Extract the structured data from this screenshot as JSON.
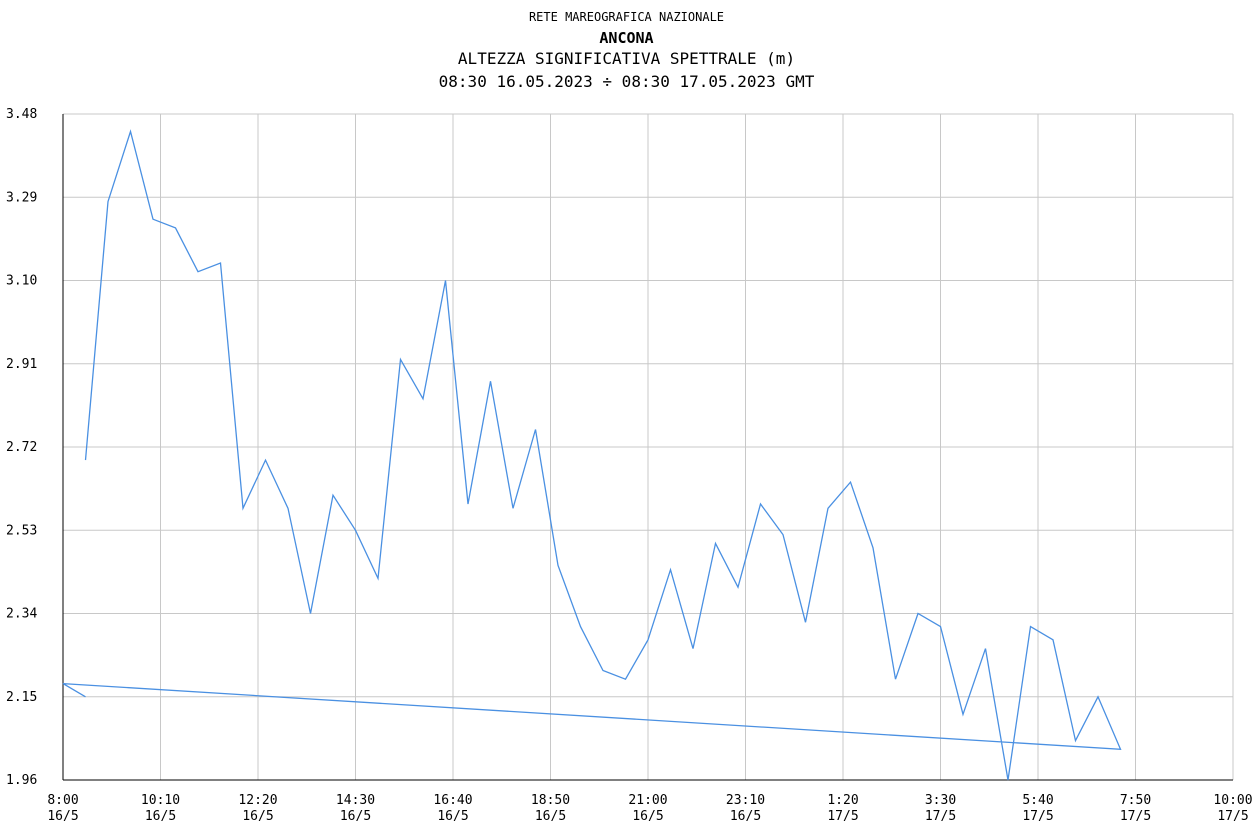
{
  "chart_data": {
    "type": "line",
    "network": "RETE MAREOGRAFICA NAZIONALE",
    "station": "ANCONA",
    "title": "ALTEZZA SIGNIFICATIVA SPETTRALE (m)",
    "subtitle": "08:30 16.05.2023 ÷ 08:30 17.05.2023 GMT",
    "xlabel": "",
    "ylabel": "",
    "ylim": [
      1.96,
      3.48
    ],
    "yticks": [
      "3.48",
      "3.29",
      "3.10",
      "2.91",
      "2.72",
      "2.53",
      "2.34",
      "2.15",
      "1.96"
    ],
    "xlim_minutes_from_0800": [
      0,
      1560
    ],
    "xticks": [
      {
        "time": "8:00",
        "date": "16/5"
      },
      {
        "time": "10:10",
        "date": "16/5"
      },
      {
        "time": "12:20",
        "date": "16/5"
      },
      {
        "time": "14:30",
        "date": "16/5"
      },
      {
        "time": "16:40",
        "date": "16/5"
      },
      {
        "time": "18:50",
        "date": "16/5"
      },
      {
        "time": "21:00",
        "date": "16/5"
      },
      {
        "time": "23:10",
        "date": "16/5"
      },
      {
        "time": "1:20",
        "date": "17/5"
      },
      {
        "time": "3:30",
        "date": "17/5"
      },
      {
        "time": "5:40",
        "date": "17/5"
      },
      {
        "time": "7:50",
        "date": "17/5"
      },
      {
        "time": "10:00",
        "date": "17/5"
      }
    ],
    "grid": true,
    "color": "#4a90e2",
    "series": [
      {
        "name": "",
        "x_times": [
          "08:30",
          "09:00",
          "09:30",
          "10:00",
          "10:30",
          "11:00",
          "11:30",
          "12:00",
          "12:30",
          "13:00",
          "13:30",
          "14:00",
          "14:30",
          "15:00",
          "15:30",
          "16:00",
          "16:30",
          "17:00",
          "17:30",
          "18:00",
          "18:30",
          "19:00",
          "19:30",
          "20:00",
          "20:30",
          "21:00",
          "21:30",
          "22:00",
          "22:30",
          "23:00",
          "23:30",
          "00:00",
          "00:30",
          "01:00",
          "01:30",
          "02:00",
          "02:30",
          "03:00",
          "03:30",
          "04:00",
          "04:30",
          "05:00",
          "05:30",
          "06:00",
          "06:30",
          "07:00",
          "07:30",
          "08:00",
          "08:30"
        ],
        "values": [
          2.69,
          3.28,
          3.44,
          3.24,
          3.22,
          3.12,
          3.14,
          2.58,
          2.69,
          2.58,
          2.34,
          2.61,
          2.53,
          2.42,
          2.92,
          2.83,
          3.1,
          2.59,
          2.87,
          2.58,
          2.76,
          2.45,
          2.31,
          2.21,
          2.19,
          2.28,
          2.44,
          2.26,
          2.5,
          2.4,
          2.59,
          2.52,
          2.32,
          2.58,
          2.64,
          2.49,
          2.19,
          2.34,
          2.31,
          2.11,
          2.26,
          1.96,
          2.31,
          2.28,
          2.05,
          2.15,
          2.03,
          2.18,
          2.15
        ]
      }
    ]
  }
}
